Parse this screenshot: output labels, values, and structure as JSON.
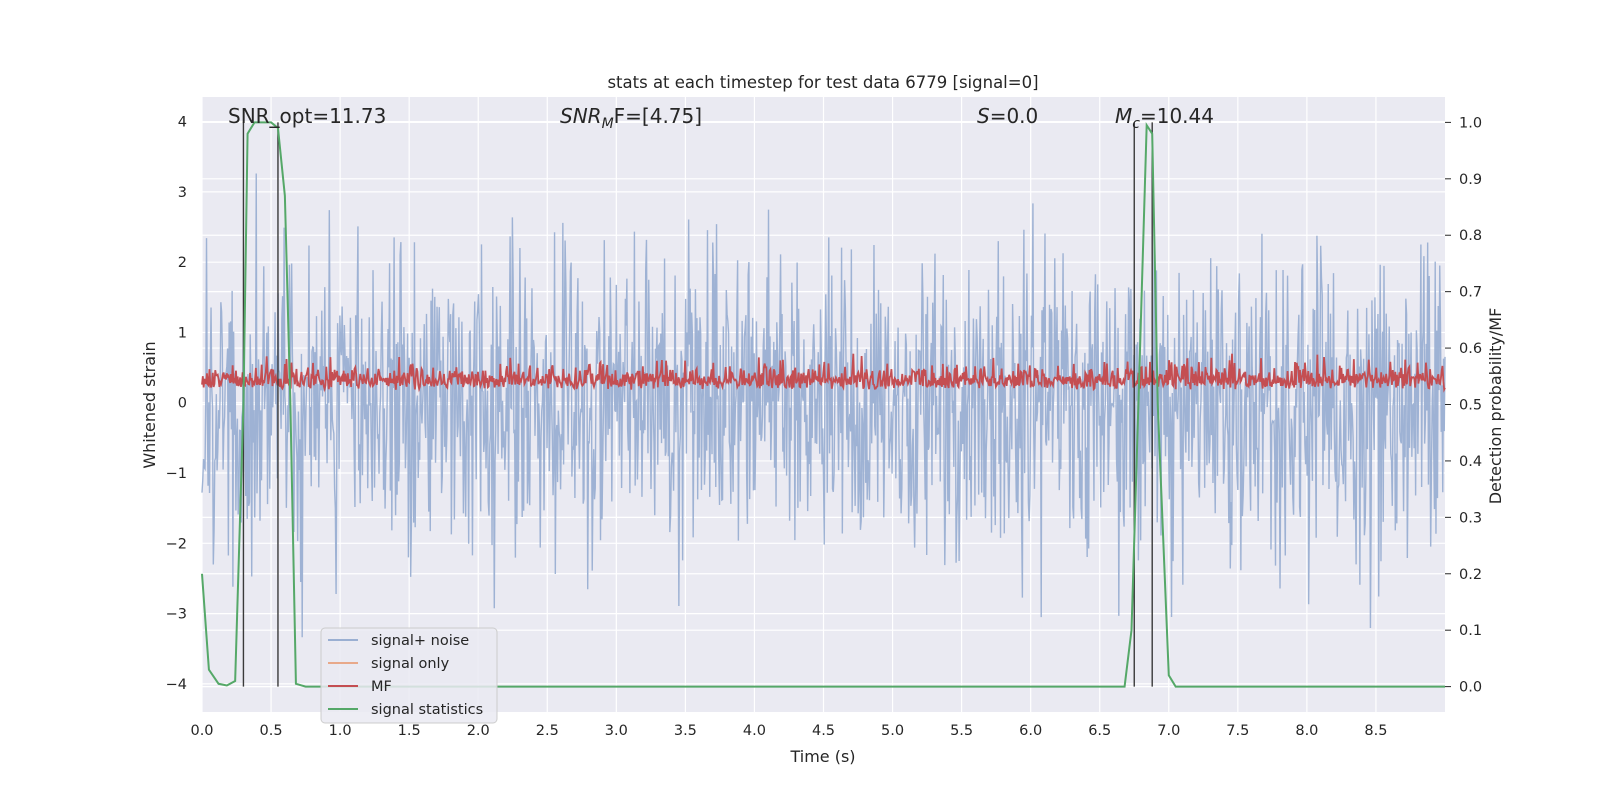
{
  "chart_data": {
    "type": "line",
    "title": "stats at each timestep for test data 6779 [signal=0]",
    "xlabel": "Time (s)",
    "ylabel_left": "Whitened strain",
    "ylabel_right": "Detection probability/MF",
    "xlim": [
      0.0,
      9.0
    ],
    "ylim_left": [
      -4.4,
      4.35
    ],
    "ylim_right": [
      -0.045,
      1.045
    ],
    "xticks": [
      "0.0",
      "0.5",
      "1.0",
      "1.5",
      "2.0",
      "2.5",
      "3.0",
      "3.5",
      "4.0",
      "4.5",
      "5.0",
      "5.5",
      "6.0",
      "6.5",
      "7.0",
      "7.5",
      "8.0",
      "8.5"
    ],
    "yticks_left": [
      "4",
      "3",
      "2",
      "1",
      "0",
      "−1",
      "−2",
      "−3",
      "−4"
    ],
    "yticks_right": [
      "1.0",
      "0.9",
      "0.8",
      "0.7",
      "0.6",
      "0.5",
      "0.4",
      "0.3",
      "0.2",
      "0.1",
      "0.0"
    ],
    "grid": true,
    "legend_position": "lower-left",
    "annotations": {
      "snr_opt": "SNR_opt=11.73",
      "snr_mf_main": "SNR",
      "snr_mf_sub": "M",
      "snr_mf_rest": "F=[4.75]",
      "s_main": "S",
      "s_rest": "=0.0",
      "mc_main": "M",
      "mc_sub": "c",
      "mc_rest": "=10.44"
    },
    "series": [
      {
        "name": "signal+ noise",
        "color": "#9aafd2",
        "axis": "left",
        "description_values": "noise, amplitude mostly within [-2.5, 3.4], extremes near -4.0 and 4.0"
      },
      {
        "name": "signal only",
        "color": "#e8a98a",
        "axis": "left",
        "x": [],
        "y": []
      },
      {
        "name": "MF",
        "color": "#c44e52",
        "axis": "right",
        "range": [
          0.5,
          0.58
        ]
      },
      {
        "name": "signal statistics",
        "color": "#55a868",
        "axis": "right",
        "x": [
          0.0,
          0.05,
          0.12,
          0.18,
          0.24,
          0.3,
          0.33,
          0.38,
          0.5,
          0.55,
          0.6,
          0.64,
          0.68,
          0.75,
          1.0,
          3.0,
          5.0,
          6.5,
          6.68,
          6.73,
          6.78,
          6.84,
          6.88,
          6.92,
          7.0,
          7.05,
          8.0,
          9.0
        ],
        "y": [
          0.2,
          0.03,
          0.005,
          0.002,
          0.01,
          0.5,
          0.98,
          1.0,
          1.0,
          0.99,
          0.87,
          0.5,
          0.005,
          0.0,
          0.0,
          0.0,
          0.0,
          0.0,
          0.0,
          0.1,
          0.5,
          0.995,
          0.98,
          0.5,
          0.02,
          0.0,
          0.0,
          0.0
        ]
      }
    ],
    "vlines": [
      0.3,
      0.55,
      6.75,
      6.88
    ],
    "vline_color": "#3a3a3a"
  }
}
